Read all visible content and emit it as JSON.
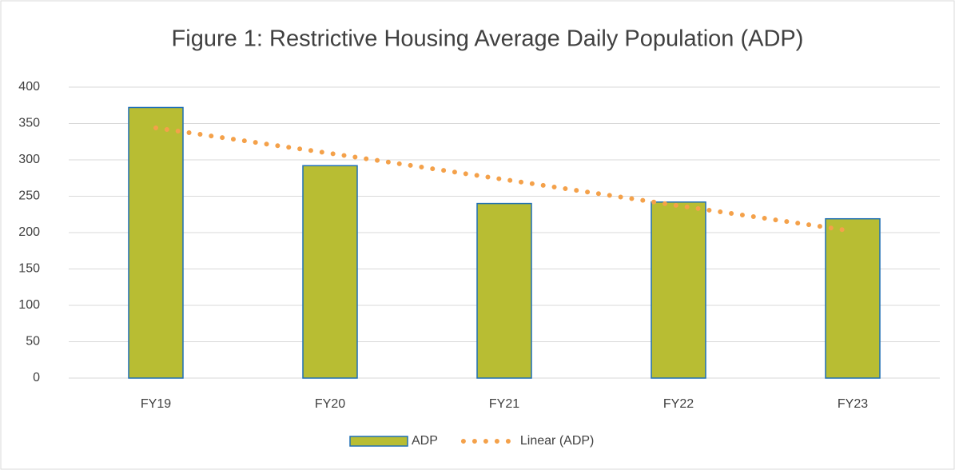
{
  "chart_data": {
    "type": "bar",
    "title": "Figure 1: Restrictive Housing Average Daily Population (ADP)",
    "categories": [
      "FY19",
      "FY20",
      "FY21",
      "FY22",
      "FY23"
    ],
    "series": [
      {
        "name": "ADP",
        "type": "bar",
        "color": "#b8bd33",
        "edgecolor": "#1f6fb5",
        "values": [
          372,
          292,
          240,
          242,
          219
        ]
      },
      {
        "name": "Linear (ADP)",
        "type": "trendline",
        "color": "#f4a14a",
        "values": [
          344,
          309,
          273,
          237,
          202
        ]
      }
    ],
    "ylim": [
      0,
      400
    ],
    "yticks": [
      0,
      50,
      100,
      150,
      200,
      250,
      300,
      350,
      400
    ],
    "grid": true,
    "legend": "bottom"
  }
}
